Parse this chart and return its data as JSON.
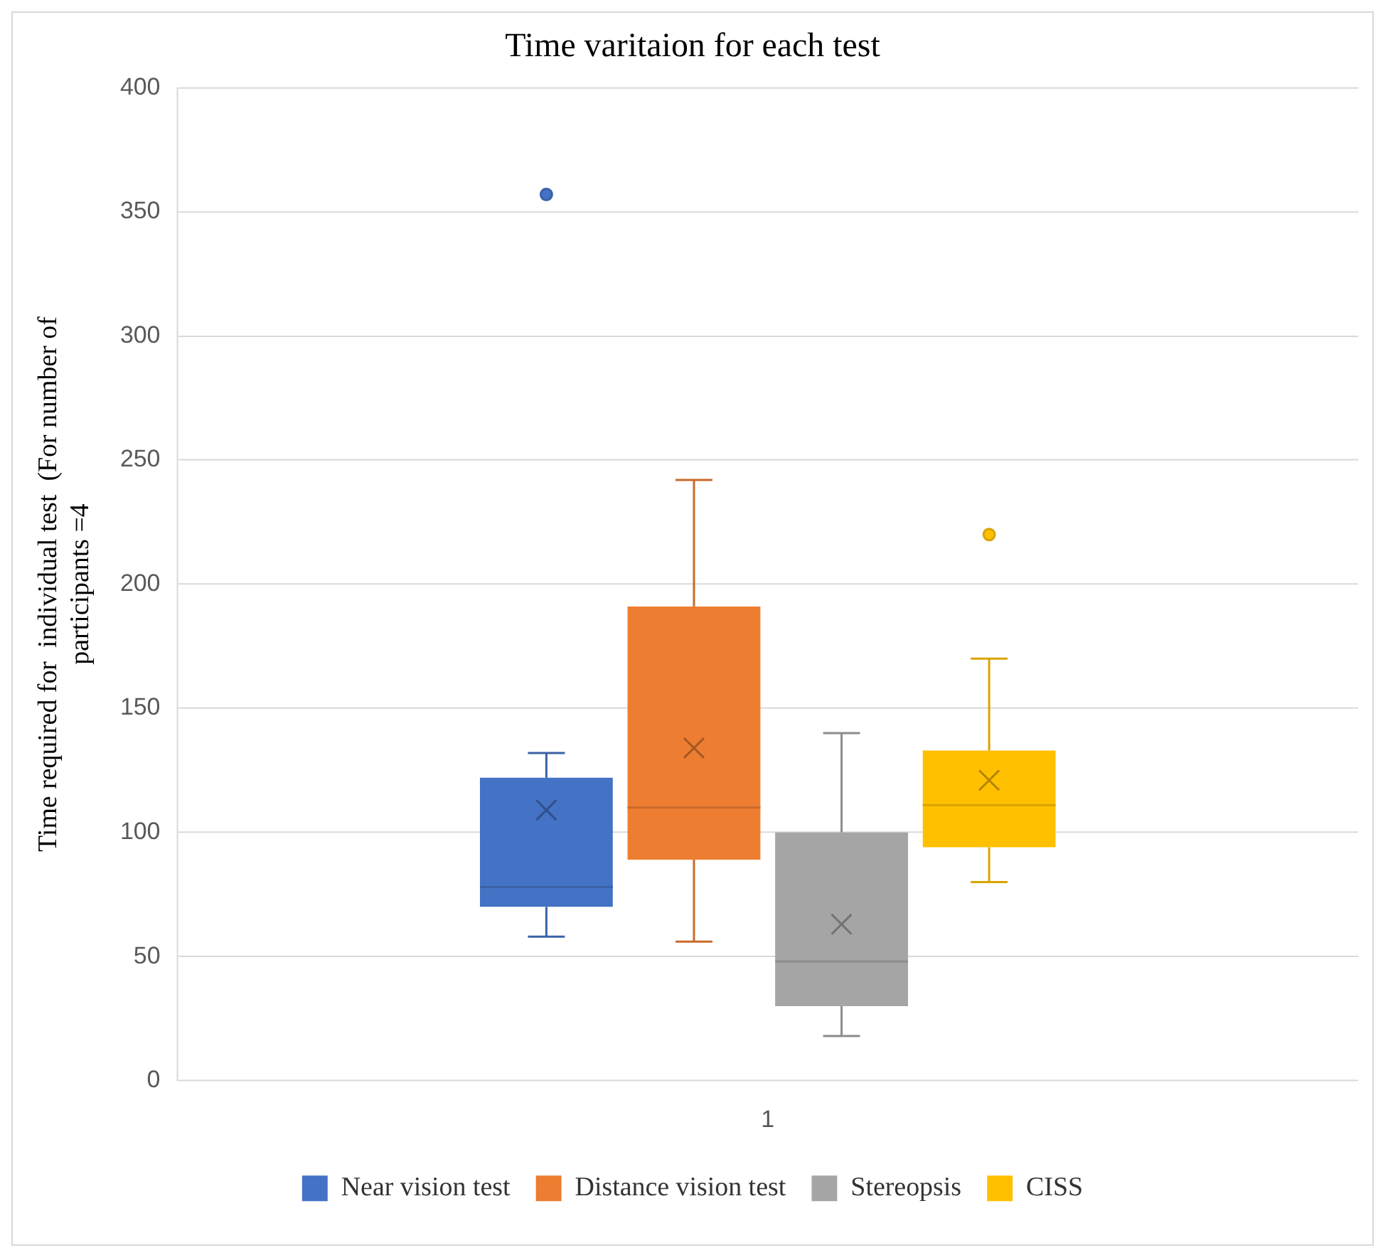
{
  "chart_data": {
    "type": "box",
    "title": "Time varitaion for each test",
    "ylabel": "Time required for  individual test  (For number of\nparticipants =4",
    "categories": [
      "1"
    ],
    "series": [
      {
        "name": "Near vision test",
        "color": "#4472c4",
        "boxes": [
          {
            "low": 58,
            "q1": 70,
            "median": 78,
            "q3": 122,
            "high": 132,
            "mean": 109,
            "outliers": [
              357
            ]
          }
        ]
      },
      {
        "name": "Distance vision test",
        "color": "#ed7d31",
        "boxes": [
          {
            "low": 56,
            "q1": 89,
            "median": 110,
            "q3": 191,
            "high": 242,
            "mean": 134
          }
        ]
      },
      {
        "name": "Stereopsis",
        "color": "#a5a5a5",
        "boxes": [
          {
            "low": 18,
            "q1": 30,
            "median": 48,
            "q3": 100,
            "high": 140,
            "mean": 63
          }
        ]
      },
      {
        "name": "CISS",
        "color": "#ffc000",
        "boxes": [
          {
            "low": 80,
            "q1": 94,
            "median": 111,
            "q3": 133,
            "high": 170,
            "mean": 121,
            "outliers": [
              220
            ]
          }
        ]
      }
    ],
    "ylim": [
      0,
      400
    ],
    "yticks": [
      0,
      50,
      100,
      150,
      200,
      250,
      300,
      350,
      400
    ],
    "grid": "y",
    "legend": "bottom"
  }
}
